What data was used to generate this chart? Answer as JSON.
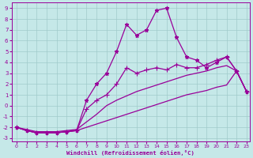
{
  "xlabel": "Windchill (Refroidissement éolien,°C)",
  "ylabel": "",
  "xlim": [
    -0.5,
    23.3
  ],
  "ylim": [
    -3.3,
    9.5
  ],
  "yticks": [
    -3,
    -2,
    -1,
    0,
    1,
    2,
    3,
    4,
    5,
    6,
    7,
    8,
    9
  ],
  "xticks": [
    0,
    1,
    2,
    3,
    4,
    5,
    6,
    7,
    8,
    9,
    10,
    11,
    12,
    13,
    14,
    15,
    16,
    17,
    18,
    19,
    20,
    21,
    22,
    23
  ],
  "background_color": "#c5e8e8",
  "line_color": "#990099",
  "grid_color": "#a0caca",
  "lines": [
    {
      "x": [
        0,
        1,
        2,
        3,
        4,
        5,
        6,
        7,
        8,
        9,
        10,
        11,
        12,
        13,
        14,
        15,
        16,
        17,
        18,
        19,
        20,
        21,
        22,
        23
      ],
      "y": [
        -2.0,
        -2.3,
        -2.5,
        -2.5,
        -2.5,
        -2.4,
        -2.3,
        0.5,
        2.0,
        3.0,
        5.0,
        7.5,
        6.5,
        7.0,
        8.8,
        9.0,
        6.3,
        4.5,
        4.2,
        3.5,
        4.0,
        4.5,
        3.2,
        1.3
      ],
      "marker": "*",
      "markersize": 3.5,
      "linewidth": 0.9
    },
    {
      "x": [
        0,
        1,
        2,
        3,
        4,
        5,
        6,
        7,
        8,
        9,
        10,
        11,
        12,
        13,
        14,
        15,
        16,
        17,
        18,
        19,
        20,
        21,
        22,
        23
      ],
      "y": [
        -2.0,
        -2.3,
        -2.5,
        -2.5,
        -2.5,
        -2.4,
        -2.3,
        -0.3,
        0.5,
        1.0,
        2.0,
        3.5,
        3.0,
        3.3,
        3.5,
        3.3,
        3.8,
        3.5,
        3.5,
        3.8,
        4.2,
        4.5,
        3.2,
        1.3
      ],
      "marker": "+",
      "markersize": 4,
      "linewidth": 0.9
    },
    {
      "x": [
        0,
        1,
        2,
        3,
        4,
        5,
        6,
        7,
        8,
        9,
        10,
        11,
        12,
        13,
        14,
        15,
        16,
        17,
        18,
        19,
        20,
        21,
        22,
        23
      ],
      "y": [
        -2.0,
        -2.2,
        -2.4,
        -2.4,
        -2.4,
        -2.3,
        -2.2,
        -1.5,
        -0.8,
        0.0,
        0.5,
        0.9,
        1.3,
        1.6,
        1.9,
        2.2,
        2.5,
        2.8,
        3.0,
        3.2,
        3.5,
        3.7,
        3.2,
        1.3
      ],
      "marker": null,
      "markersize": 0,
      "linewidth": 0.9
    },
    {
      "x": [
        0,
        1,
        2,
        3,
        4,
        5,
        6,
        7,
        8,
        9,
        10,
        11,
        12,
        13,
        14,
        15,
        16,
        17,
        18,
        19,
        20,
        21,
        22,
        23
      ],
      "y": [
        -2.0,
        -2.3,
        -2.5,
        -2.5,
        -2.5,
        -2.4,
        -2.3,
        -2.0,
        -1.7,
        -1.4,
        -1.1,
        -0.8,
        -0.5,
        -0.2,
        0.1,
        0.4,
        0.7,
        1.0,
        1.2,
        1.4,
        1.7,
        1.9,
        3.2,
        1.3
      ],
      "marker": null,
      "markersize": 0,
      "linewidth": 0.9
    }
  ]
}
